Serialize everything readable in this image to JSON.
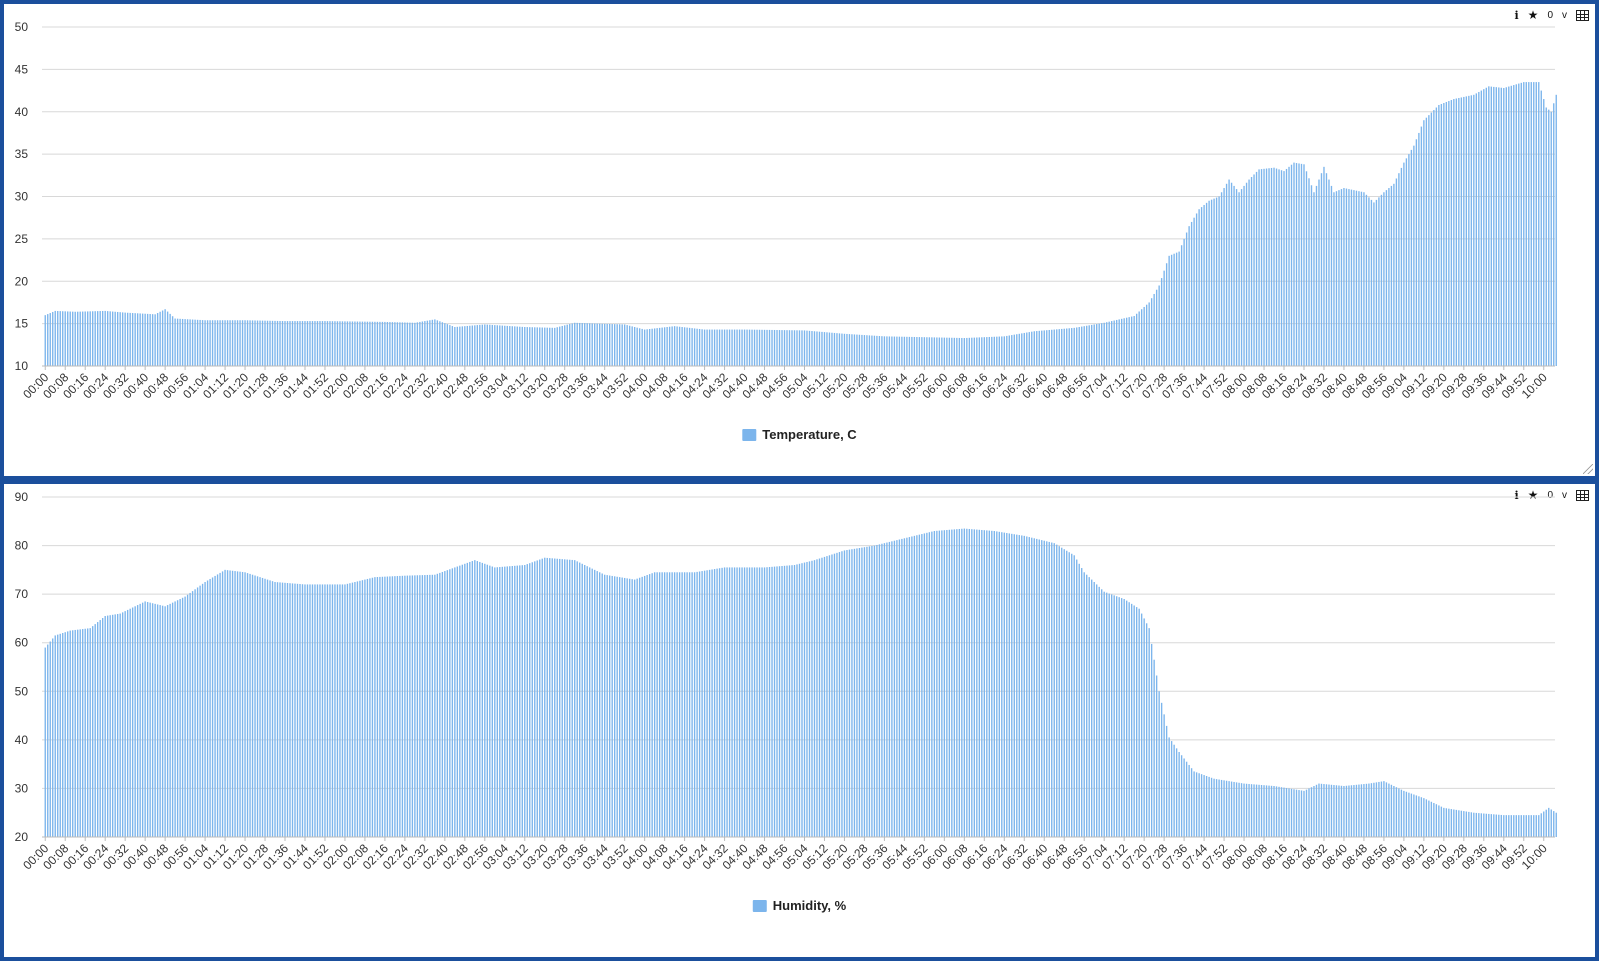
{
  "toolbar": {
    "info_icon": "info-icon",
    "star_icon": "star-icon",
    "count": "0",
    "version": "v",
    "table_icon": "table-icon"
  },
  "colors": {
    "bar": "#7cb5ec",
    "grid": "#d8d8d8",
    "background": "#ffffff",
    "frame": "#1b4f9c"
  },
  "chart_data": [
    {
      "type": "bar",
      "title": "",
      "xlabel": "",
      "ylabel": "",
      "ylim": [
        10,
        50
      ],
      "yticks": [
        "10",
        "15",
        "20",
        "25",
        "30",
        "35",
        "40",
        "45",
        "50"
      ],
      "grid": true,
      "legend_position": "bottom-center",
      "x_tick_labels": [
        "00:00",
        "00:08",
        "00:16",
        "00:24",
        "00:32",
        "00:40",
        "00:48",
        "00:56",
        "01:04",
        "01:12",
        "01:20",
        "01:28",
        "01:36",
        "01:44",
        "01:52",
        "02:00",
        "02:08",
        "02:16",
        "02:24",
        "02:32",
        "02:40",
        "02:48",
        "02:56",
        "03:04",
        "03:12",
        "03:20",
        "03:28",
        "03:36",
        "03:44",
        "03:52",
        "04:00",
        "04:08",
        "04:16",
        "04:24",
        "04:32",
        "04:40",
        "04:48",
        "04:56",
        "05:04",
        "05:12",
        "05:20",
        "05:28",
        "05:36",
        "05:44",
        "05:52",
        "06:00",
        "06:08",
        "06:16",
        "06:24",
        "06:32",
        "06:40",
        "06:48",
        "06:56",
        "07:04",
        "07:12",
        "07:20",
        "07:28",
        "07:36",
        "07:44",
        "07:52",
        "08:00",
        "08:08",
        "08:16",
        "08:24",
        "08:32",
        "08:40",
        "08:48",
        "08:56",
        "09:04",
        "09:12",
        "09:20",
        "09:28",
        "09:36",
        "09:44",
        "09:52",
        "10:00"
      ],
      "x_start": "00:00",
      "x_end": "10:05",
      "samples_per_minute": 1,
      "series": [
        {
          "name": "Temperature, C",
          "keypoints": [
            [
              "00:00",
              16.0
            ],
            [
              "00:04",
              16.5
            ],
            [
              "00:12",
              16.4
            ],
            [
              "00:24",
              16.5
            ],
            [
              "00:32",
              16.3
            ],
            [
              "00:44",
              16.1
            ],
            [
              "00:48",
              16.7
            ],
            [
              "00:52",
              15.6
            ],
            [
              "01:04",
              15.4
            ],
            [
              "01:20",
              15.4
            ],
            [
              "01:36",
              15.3
            ],
            [
              "01:52",
              15.3
            ],
            [
              "02:16",
              15.2
            ],
            [
              "02:28",
              15.1
            ],
            [
              "02:36",
              15.5
            ],
            [
              "02:44",
              14.6
            ],
            [
              "02:56",
              14.9
            ],
            [
              "03:12",
              14.6
            ],
            [
              "03:24",
              14.5
            ],
            [
              "03:32",
              15.1
            ],
            [
              "03:52",
              14.9
            ],
            [
              "04:00",
              14.3
            ],
            [
              "04:12",
              14.7
            ],
            [
              "04:24",
              14.3
            ],
            [
              "04:40",
              14.3
            ],
            [
              "05:04",
              14.2
            ],
            [
              "05:20",
              13.8
            ],
            [
              "05:36",
              13.5
            ],
            [
              "05:52",
              13.4
            ],
            [
              "06:08",
              13.3
            ],
            [
              "06:24",
              13.5
            ],
            [
              "06:36",
              14.1
            ],
            [
              "06:52",
              14.5
            ],
            [
              "07:04",
              15.1
            ],
            [
              "07:16",
              15.9
            ],
            [
              "07:22",
              17.5
            ],
            [
              "07:26",
              19.5
            ],
            [
              "07:30",
              23.0
            ],
            [
              "07:34",
              23.5
            ],
            [
              "07:38",
              26.5
            ],
            [
              "07:42",
              28.5
            ],
            [
              "07:46",
              29.5
            ],
            [
              "07:50",
              30.0
            ],
            [
              "07:54",
              32.0
            ],
            [
              "07:58",
              30.5
            ],
            [
              "08:02",
              32.0
            ],
            [
              "08:06",
              33.2
            ],
            [
              "08:12",
              33.4
            ],
            [
              "08:16",
              33.0
            ],
            [
              "08:20",
              34.0
            ],
            [
              "08:24",
              33.8
            ],
            [
              "08:28",
              30.5
            ],
            [
              "08:32",
              33.5
            ],
            [
              "08:36",
              30.5
            ],
            [
              "08:40",
              31.0
            ],
            [
              "08:48",
              30.5
            ],
            [
              "08:52",
              29.3
            ],
            [
              "08:56",
              30.5
            ],
            [
              "09:00",
              31.5
            ],
            [
              "09:04",
              34.0
            ],
            [
              "09:08",
              36.0
            ],
            [
              "09:12",
              39.0
            ],
            [
              "09:18",
              40.8
            ],
            [
              "09:24",
              41.5
            ],
            [
              "09:32",
              42.0
            ],
            [
              "09:38",
              43.0
            ],
            [
              "09:44",
              42.8
            ],
            [
              "09:52",
              43.5
            ],
            [
              "09:58",
              43.5
            ],
            [
              "10:01",
              40.5
            ],
            [
              "10:03",
              40.0
            ],
            [
              "10:05",
              42.0
            ]
          ]
        }
      ]
    },
    {
      "type": "bar",
      "title": "",
      "xlabel": "",
      "ylabel": "",
      "ylim": [
        20,
        90
      ],
      "yticks": [
        "20",
        "30",
        "40",
        "50",
        "60",
        "70",
        "80",
        "90"
      ],
      "grid": true,
      "legend_position": "bottom-center",
      "x_tick_labels": [
        "00:00",
        "00:08",
        "00:16",
        "00:24",
        "00:32",
        "00:40",
        "00:48",
        "00:56",
        "01:04",
        "01:12",
        "01:20",
        "01:28",
        "01:36",
        "01:44",
        "01:52",
        "02:00",
        "02:08",
        "02:16",
        "02:24",
        "02:32",
        "02:40",
        "02:48",
        "02:56",
        "03:04",
        "03:12",
        "03:20",
        "03:28",
        "03:36",
        "03:44",
        "03:52",
        "04:00",
        "04:08",
        "04:16",
        "04:24",
        "04:32",
        "04:40",
        "04:48",
        "04:56",
        "05:04",
        "05:12",
        "05:20",
        "05:28",
        "05:36",
        "05:44",
        "05:52",
        "06:00",
        "06:08",
        "06:16",
        "06:24",
        "06:32",
        "06:40",
        "06:48",
        "06:56",
        "07:04",
        "07:12",
        "07:20",
        "07:28",
        "07:36",
        "07:44",
        "07:52",
        "08:00",
        "08:08",
        "08:16",
        "08:24",
        "08:32",
        "08:40",
        "08:48",
        "08:56",
        "09:04",
        "09:12",
        "09:20",
        "09:28",
        "09:36",
        "09:44",
        "09:52",
        "10:00"
      ],
      "x_start": "00:00",
      "x_end": "10:05",
      "samples_per_minute": 1,
      "series": [
        {
          "name": "Humidity, %",
          "keypoints": [
            [
              "00:00",
              59.0
            ],
            [
              "00:04",
              61.5
            ],
            [
              "00:10",
              62.5
            ],
            [
              "00:18",
              63.0
            ],
            [
              "00:24",
              65.5
            ],
            [
              "00:30",
              66.0
            ],
            [
              "00:40",
              68.5
            ],
            [
              "00:48",
              67.5
            ],
            [
              "00:56",
              69.5
            ],
            [
              "01:04",
              72.5
            ],
            [
              "01:12",
              75.0
            ],
            [
              "01:20",
              74.5
            ],
            [
              "01:32",
              72.5
            ],
            [
              "01:44",
              72.0
            ],
            [
              "02:00",
              72.0
            ],
            [
              "02:12",
              73.5
            ],
            [
              "02:24",
              73.8
            ],
            [
              "02:36",
              74.0
            ],
            [
              "02:44",
              75.5
            ],
            [
              "02:52",
              77.0
            ],
            [
              "03:00",
              75.5
            ],
            [
              "03:12",
              76.0
            ],
            [
              "03:20",
              77.5
            ],
            [
              "03:32",
              77.0
            ],
            [
              "03:44",
              74.0
            ],
            [
              "03:56",
              73.0
            ],
            [
              "04:04",
              74.5
            ],
            [
              "04:20",
              74.5
            ],
            [
              "04:32",
              75.5
            ],
            [
              "04:48",
              75.5
            ],
            [
              "05:00",
              76.0
            ],
            [
              "05:08",
              77.0
            ],
            [
              "05:20",
              79.0
            ],
            [
              "05:32",
              80.0
            ],
            [
              "05:44",
              81.5
            ],
            [
              "05:56",
              83.0
            ],
            [
              "06:08",
              83.5
            ],
            [
              "06:20",
              83.0
            ],
            [
              "06:32",
              82.0
            ],
            [
              "06:44",
              80.5
            ],
            [
              "06:52",
              78.0
            ],
            [
              "06:56",
              74.5
            ],
            [
              "07:04",
              70.5
            ],
            [
              "07:12",
              69.0
            ],
            [
              "07:18",
              67.0
            ],
            [
              "07:22",
              63.0
            ],
            [
              "07:26",
              50.0
            ],
            [
              "07:30",
              40.5
            ],
            [
              "07:34",
              37.5
            ],
            [
              "07:40",
              33.5
            ],
            [
              "07:48",
              32.0
            ],
            [
              "08:00",
              31.0
            ],
            [
              "08:12",
              30.5
            ],
            [
              "08:24",
              29.5
            ],
            [
              "08:30",
              31.0
            ],
            [
              "08:40",
              30.5
            ],
            [
              "08:50",
              31.0
            ],
            [
              "08:56",
              31.5
            ],
            [
              "09:04",
              29.5
            ],
            [
              "09:12",
              28.0
            ],
            [
              "09:20",
              26.0
            ],
            [
              "09:32",
              25.0
            ],
            [
              "09:44",
              24.5
            ],
            [
              "09:52",
              24.5
            ],
            [
              "09:58",
              24.5
            ],
            [
              "10:02",
              26.0
            ],
            [
              "10:05",
              25.0
            ]
          ]
        }
      ]
    }
  ]
}
